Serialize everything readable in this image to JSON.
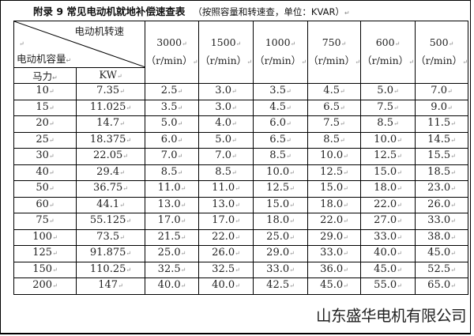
{
  "title": {
    "main": "附录 9   常见电动机就地补偿速查表",
    "subtitle": "（按照容量和转速查，单位：KVAR）"
  },
  "table": {
    "corner_top": "电动机转速",
    "corner_bottom": "电动机容量",
    "sub_headers": [
      "马力",
      "KW"
    ],
    "speed_unit": "（r/min）",
    "speeds": [
      "3000",
      "1500",
      "1000",
      "750",
      "600",
      "500"
    ],
    "rows": [
      [
        "10",
        "7.35",
        "2.5",
        "3.0",
        "3.5",
        "4.5",
        "5.0",
        "7.0"
      ],
      [
        "15",
        "11.025",
        "3.5",
        "3.0",
        "4.5",
        "6.5",
        "7.5",
        "9.0"
      ],
      [
        "20",
        "14.7",
        "5.0",
        "4.0",
        "6.0",
        "7.5",
        "8.5",
        "11.5"
      ],
      [
        "25",
        "18.375",
        "6.0",
        "5.0",
        "6.5",
        "8.5",
        "10.0",
        "14.5"
      ],
      [
        "30",
        "22.05",
        "7.0",
        "7.0",
        "8.5",
        "10.0",
        "12.5",
        "15.5"
      ],
      [
        "40",
        "29.4",
        "8.5",
        "8.5",
        "10.0",
        "12.5",
        "15.0",
        "18.5"
      ],
      [
        "50",
        "36.75",
        "11.0",
        "11.0",
        "12.5",
        "15.0",
        "18.0",
        "23.0"
      ],
      [
        "60",
        "44.1",
        "13.0",
        "13.0",
        "15.0",
        "18.0",
        "22.0",
        "26.0"
      ],
      [
        "75",
        "55.125",
        "17.0",
        "17.0",
        "18.0",
        "22.0",
        "27.0",
        "33.0"
      ],
      [
        "100",
        "73.5",
        "21.5",
        "22.0",
        "25.0",
        "29.0",
        "33.0",
        "38.0"
      ],
      [
        "125",
        "91.875",
        "25.0",
        "26.0",
        "29.0",
        "33.0",
        "40.0",
        "45.0"
      ],
      [
        "150",
        "110.25",
        "32.5",
        "32.5",
        "33.0",
        "36.0",
        "45.0",
        "52.5"
      ],
      [
        "200",
        "147",
        "40.0",
        "40.0",
        "42.5",
        "45.0",
        "55.0",
        "65.0"
      ]
    ]
  },
  "watermark": "山东盛华电机有限公司"
}
